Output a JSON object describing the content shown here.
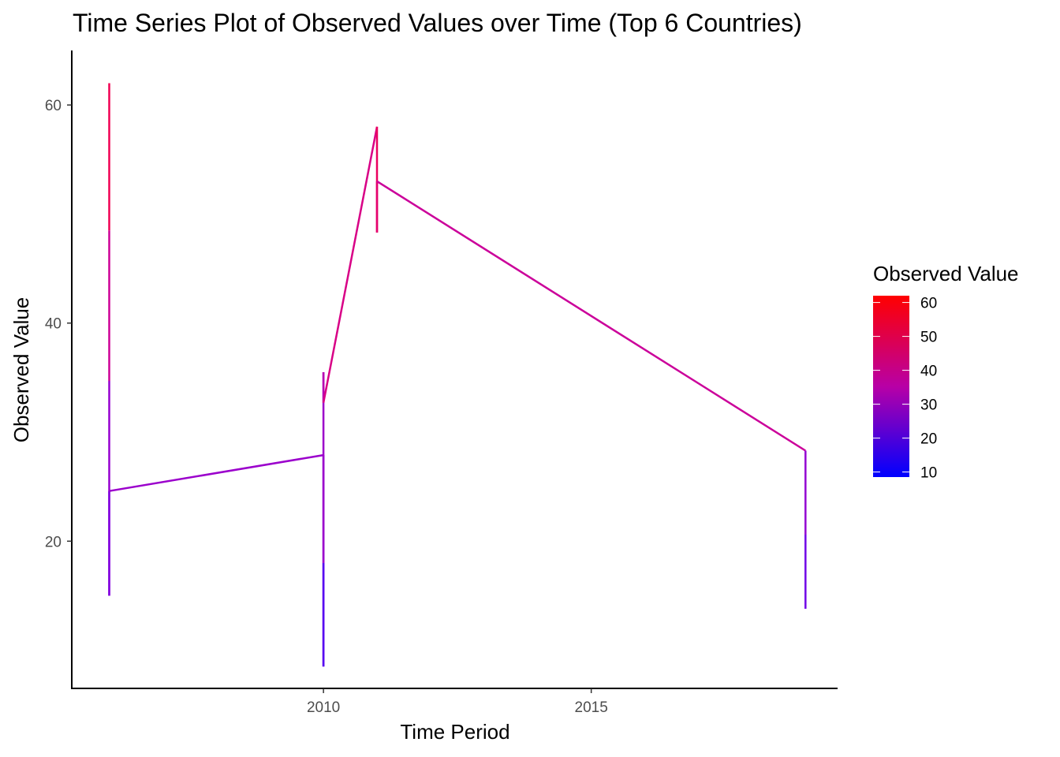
{
  "chart_data": {
    "type": "line",
    "title": "Time Series Plot of Observed Values over Time (Top 6 Countries)",
    "xlabel": "Time Period",
    "ylabel": "Observed Value",
    "xlim": [
      2005.3,
      2019.6
    ],
    "ylim": [
      6.5,
      65
    ],
    "x_ticks": [
      2010,
      2015
    ],
    "y_ticks": [
      20,
      40,
      60
    ],
    "grid": false,
    "color_scale": {
      "title": "Observed Value",
      "low_color": "#0000ff",
      "high_color": "#ff0000",
      "min": 8.5,
      "max": 62,
      "ticks": [
        10,
        20,
        30,
        40,
        50,
        60
      ]
    },
    "series": [
      {
        "name": "path",
        "points": [
          {
            "x": 2006,
            "y": 62.0
          },
          {
            "x": 2006,
            "y": 48.5
          },
          {
            "x": 2006,
            "y": 34.7
          },
          {
            "x": 2006,
            "y": 15.0
          },
          {
            "x": 2006,
            "y": 24.6
          },
          {
            "x": 2010,
            "y": 27.9
          },
          {
            "x": 2010,
            "y": 8.5
          },
          {
            "x": 2010,
            "y": 18.0
          },
          {
            "x": 2010,
            "y": 35.5
          },
          {
            "x": 2010,
            "y": 32.7
          },
          {
            "x": 2011,
            "y": 58.0
          },
          {
            "x": 2011,
            "y": 48.3
          },
          {
            "x": 2011,
            "y": 53.0
          },
          {
            "x": 2019,
            "y": 28.3
          },
          {
            "x": 2019,
            "y": 20.6
          },
          {
            "x": 2019,
            "y": 13.8
          }
        ]
      }
    ]
  }
}
